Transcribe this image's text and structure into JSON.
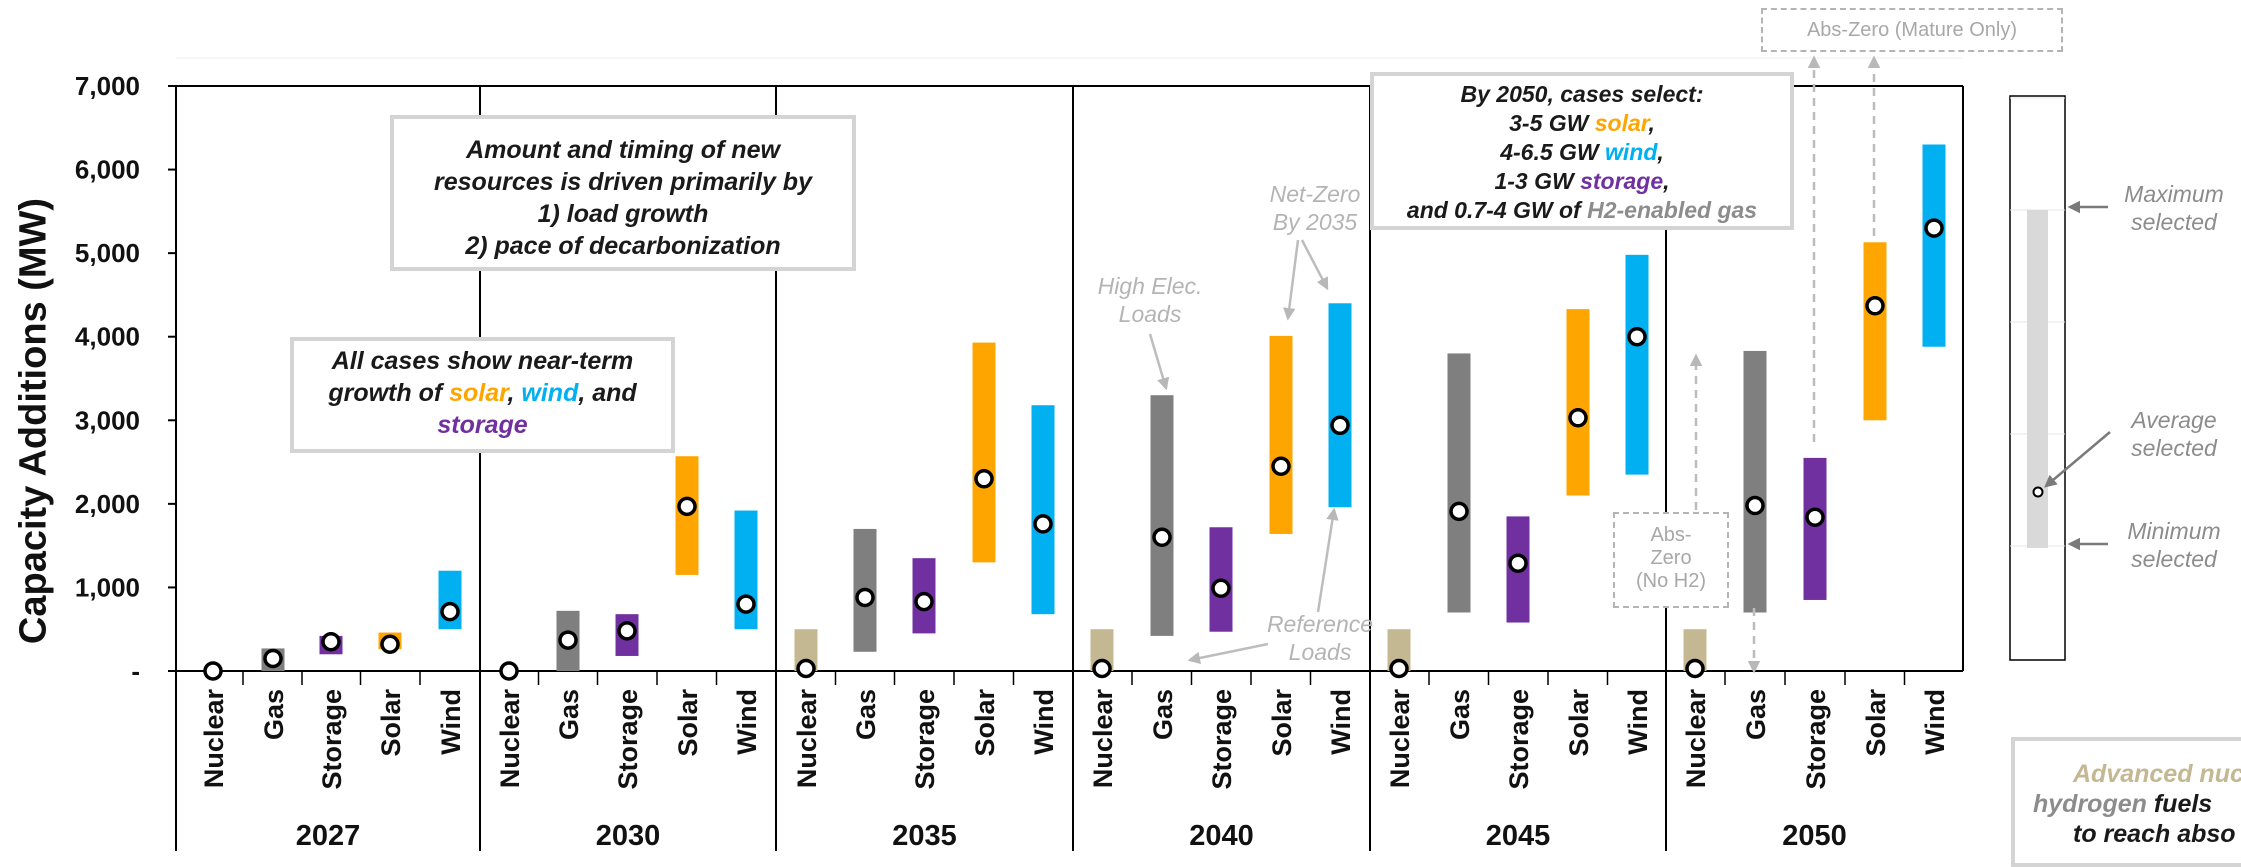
{
  "chart_data": {
    "type": "range-bar",
    "ylabel": "Capacity Additions (MW)",
    "ylim": [
      0,
      7000
    ],
    "yticks": [
      {
        "value": 0,
        "label": "-"
      },
      {
        "value": 1000,
        "label": "1,000"
      },
      {
        "value": 2000,
        "label": "2,000"
      },
      {
        "value": 3000,
        "label": "3,000"
      },
      {
        "value": 4000,
        "label": "4,000"
      },
      {
        "value": 5000,
        "label": "5,000"
      },
      {
        "value": 6000,
        "label": "6,000"
      },
      {
        "value": 7000,
        "label": "7,000"
      }
    ],
    "categories": [
      "Nuclear",
      "Gas",
      "Storage",
      "Solar",
      "Wind"
    ],
    "category_colors": {
      "Nuclear": "#c4b893",
      "Gas": "#7f7f7f",
      "Storage": "#7030a0",
      "Solar": "#ffa500",
      "Wind": "#00b0f0"
    },
    "groups": [
      {
        "year": "2027",
        "data": [
          {
            "resource": "Nuclear",
            "min": 0,
            "max": 0,
            "avg": 0
          },
          {
            "resource": "Gas",
            "min": 0,
            "max": 270,
            "avg": 150
          },
          {
            "resource": "Storage",
            "min": 200,
            "max": 420,
            "avg": 350
          },
          {
            "resource": "Solar",
            "min": 260,
            "max": 460,
            "avg": 320
          },
          {
            "resource": "Wind",
            "min": 500,
            "max": 1200,
            "avg": 710
          }
        ]
      },
      {
        "year": "2030",
        "data": [
          {
            "resource": "Nuclear",
            "min": 0,
            "max": 0,
            "avg": 0
          },
          {
            "resource": "Gas",
            "min": 0,
            "max": 720,
            "avg": 370
          },
          {
            "resource": "Storage",
            "min": 180,
            "max": 680,
            "avg": 480
          },
          {
            "resource": "Solar",
            "min": 1150,
            "max": 2570,
            "avg": 1970
          },
          {
            "resource": "Wind",
            "min": 500,
            "max": 1920,
            "avg": 800
          }
        ]
      },
      {
        "year": "2035",
        "data": [
          {
            "resource": "Nuclear",
            "min": 0,
            "max": 500,
            "avg": 30
          },
          {
            "resource": "Gas",
            "min": 230,
            "max": 1700,
            "avg": 880
          },
          {
            "resource": "Storage",
            "min": 450,
            "max": 1350,
            "avg": 830
          },
          {
            "resource": "Solar",
            "min": 1300,
            "max": 3930,
            "avg": 2300
          },
          {
            "resource": "Wind",
            "min": 680,
            "max": 3180,
            "avg": 1760
          }
        ]
      },
      {
        "year": "2040",
        "data": [
          {
            "resource": "Nuclear",
            "min": 0,
            "max": 500,
            "avg": 30
          },
          {
            "resource": "Gas",
            "min": 420,
            "max": 3300,
            "avg": 1600
          },
          {
            "resource": "Storage",
            "min": 470,
            "max": 1720,
            "avg": 990
          },
          {
            "resource": "Solar",
            "min": 1640,
            "max": 4010,
            "avg": 2450
          },
          {
            "resource": "Wind",
            "min": 1960,
            "max": 4400,
            "avg": 2940
          }
        ]
      },
      {
        "year": "2045",
        "data": [
          {
            "resource": "Nuclear",
            "min": 0,
            "max": 500,
            "avg": 30
          },
          {
            "resource": "Gas",
            "min": 700,
            "max": 3800,
            "avg": 1910
          },
          {
            "resource": "Storage",
            "min": 580,
            "max": 1850,
            "avg": 1290
          },
          {
            "resource": "Solar",
            "min": 2100,
            "max": 4330,
            "avg": 3030
          },
          {
            "resource": "Wind",
            "min": 2350,
            "max": 4980,
            "avg": 4000
          }
        ]
      },
      {
        "year": "2050",
        "data": [
          {
            "resource": "Nuclear",
            "min": 0,
            "max": 500,
            "avg": 30
          },
          {
            "resource": "Gas",
            "min": 700,
            "max": 3830,
            "avg": 1980
          },
          {
            "resource": "Storage",
            "min": 850,
            "max": 2550,
            "avg": 1840
          },
          {
            "resource": "Solar",
            "min": 3000,
            "max": 5130,
            "avg": 4370
          },
          {
            "resource": "Wind",
            "min": 3880,
            "max": 6300,
            "avg": 5300
          }
        ]
      }
    ]
  },
  "callouts": {
    "drivers": {
      "line1": "Amount and timing of new",
      "line2": "resources is driven primarily by",
      "line3": "1) load growth",
      "line4": "2) pace of decarbonization"
    },
    "near_term": {
      "line1": "All cases show near-term",
      "pre": "growth of ",
      "solar": "solar",
      "sep": ", ",
      "wind": "wind",
      "and": ", and",
      "storage": "storage"
    },
    "by2050": {
      "line1": "By 2050, cases select:",
      "l2_pre": "3-5 GW ",
      "solar": "solar",
      "comma": ",",
      "l3_pre": "4-6.5 GW ",
      "wind": "wind",
      "l4_pre": "1-3 GW ",
      "storage": "storage",
      "l5_pre": "and 0.7-4 GW of ",
      "h2": "H2-enabled gas"
    },
    "footer": {
      "nuc": "Advanced nuc",
      "hydrogen": "hydrogen",
      "fuels": " fuels",
      "line3": "to reach abso"
    }
  },
  "annotations": {
    "high_elec": {
      "line1": "High Elec.",
      "line2": "Loads"
    },
    "net_zero": {
      "line1": "Net-Zero",
      "line2": "By 2035"
    },
    "reference": {
      "line1": "Reference",
      "line2": "Loads"
    },
    "abs_zero_mature": "Abs-Zero (Mature Only)",
    "abs_zero_noh2": {
      "line1": "Abs-",
      "line2": "Zero",
      "line3": "(No H2)"
    }
  },
  "legend": {
    "maximum": {
      "line1": "Maximum",
      "line2": "selected"
    },
    "average": {
      "line1": "Average",
      "line2": "selected"
    },
    "minimum": {
      "line1": "Minimum",
      "line2": "selected"
    }
  },
  "colors": {
    "gas": "#7f7f7f",
    "nuclear": "#c4b893",
    "storage": "#7030a0",
    "solar": "#ffa500",
    "wind": "#00b0f0",
    "annotation_grey": "#b4b4b4"
  }
}
